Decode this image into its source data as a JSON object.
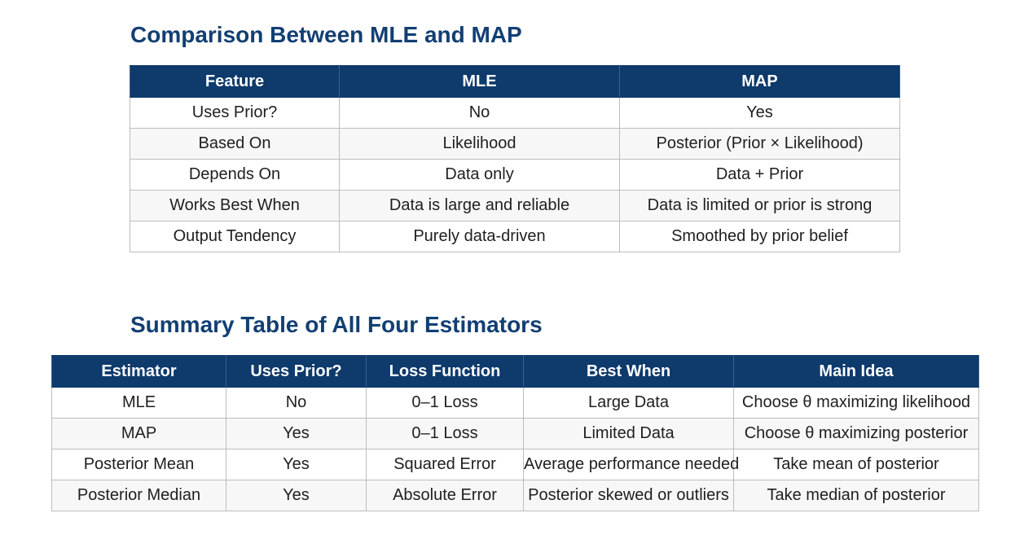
{
  "section1": {
    "title": "Comparison Between MLE and MAP",
    "headers": [
      "Feature",
      "MLE",
      "MAP"
    ],
    "rows": [
      [
        "Uses Prior?",
        "No",
        "Yes"
      ],
      [
        "Based On",
        "Likelihood",
        "Posterior (Prior × Likelihood)"
      ],
      [
        "Depends On",
        "Data only",
        "Data + Prior"
      ],
      [
        "Works Best When",
        "Data is large and reliable",
        "Data is limited or prior is strong"
      ],
      [
        "Output Tendency",
        "Purely data-driven",
        "Smoothed by prior belief"
      ]
    ]
  },
  "section2": {
    "title": "Summary Table of All Four Estimators",
    "headers": [
      "Estimator",
      "Uses Prior?",
      "Loss Function",
      "Best When",
      "Main Idea"
    ],
    "rows": [
      [
        "MLE",
        "No",
        "0–1 Loss",
        "Large Data",
        "Choose θ maximizing likelihood"
      ],
      [
        "MAP",
        "Yes",
        "0–1 Loss",
        "Limited Data",
        "Choose θ maximizing posterior"
      ],
      [
        "Posterior Mean",
        "Yes",
        "Squared Error",
        "Average performance needed",
        "Take mean of posterior"
      ],
      [
        "Posterior Median",
        "Yes",
        "Absolute Error",
        "Posterior skewed or outliers",
        "Take median of posterior"
      ]
    ]
  },
  "colors": {
    "heading": "#123f73",
    "header_bg": "#0e3a6c",
    "header_text": "#ffffff",
    "border": "#bdbdbd"
  }
}
